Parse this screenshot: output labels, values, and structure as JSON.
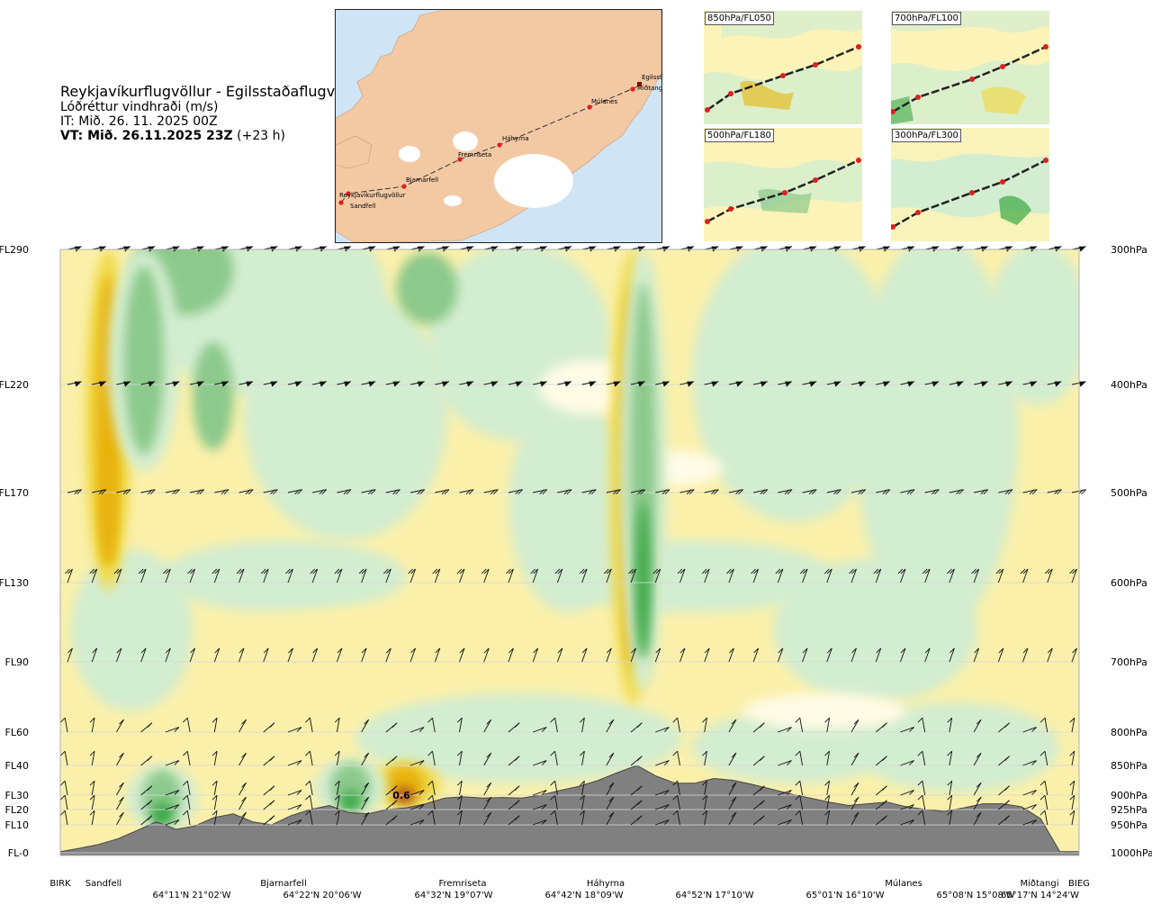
{
  "header": {
    "route": "Reykjavíkurflugvöllur - Egilsstaðaflugvöllur",
    "quantity": "Lóðréttur vindhraði (m/s)",
    "init_time": "IT: Mið. 26. 11. 2025 00Z",
    "valid_time_bold": "VT: Mið. 26.11.2025 23Z",
    "valid_time_offset": "(+23 h)"
  },
  "map": {
    "places": [
      "Reykjavíkurflugvöllur",
      "Sandfell",
      "Bjarnarfell",
      "Fremriseta",
      "Háhyrna",
      "Múlanes",
      "Miðtangi",
      "Egilsstaðir"
    ],
    "colors": {
      "sea": "#cfe4f4",
      "land": "#f3c9a4",
      "ice": "#ffffff",
      "route_point": "#e02020"
    }
  },
  "insets": [
    {
      "label": "850hPa/FL050"
    },
    {
      "label": "700hPa/FL100"
    },
    {
      "label": "500hPa/FL180"
    },
    {
      "label": "300hPa/FL300"
    }
  ],
  "chart_data": {
    "type": "heatmap",
    "title": "Lóðréttur vindhraði (m/s)",
    "xlabel": "",
    "ylabel": "",
    "left_axis": {
      "labels": [
        "FL290",
        "FL220",
        "FL170",
        "FL130",
        "FL90",
        "FL60",
        "FL40",
        "FL30",
        "FL20",
        "FL10",
        "FL-0"
      ]
    },
    "right_axis": {
      "labels": [
        "300hPa",
        "400hPa",
        "500hPa",
        "600hPa",
        "700hPa",
        "800hPa",
        "850hPa",
        "900hPa",
        "925hPa",
        "950hPa",
        "1000hPa"
      ]
    },
    "levels_hpa": [
      300,
      400,
      500,
      600,
      700,
      800,
      850,
      900,
      925,
      950,
      1000
    ],
    "waypoints": [
      "BIRK",
      "Sandfell",
      "Bjarnarfell",
      "Fremriseta",
      "Háhyrna",
      "Múlanes",
      "Miðtangi",
      "BIEG"
    ],
    "coordinates": [
      "64°11'N 21°02'W",
      "64°22'N 20°06'W",
      "64°32'N 19°07'W",
      "64°42'N 18°09'W",
      "64°52'N 17°10'W",
      "65°01'N 16°10'W",
      "65°08'N 15°08'W",
      "65°17'N 14°24'W"
    ],
    "annotation": "0.6",
    "colors": {
      "strong_down": "#3aa845",
      "moderate_down": "#8cc98c",
      "weak_down": "#d3edd0",
      "near_zero": "#fffbe6",
      "weak_up": "#faf0aa",
      "moderate_up": "#f0dc50",
      "strong_up": "#e8b20a",
      "very_strong_up": "#a8501e",
      "terrain": "#808080"
    },
    "vertical_velocity_features": [
      {
        "kind": "up",
        "x_frac": 0.047,
        "p_top": 300,
        "p_bottom": 610,
        "max_ms": 0.3
      },
      {
        "kind": "up",
        "x_frac": 0.562,
        "p_top": 300,
        "p_bottom": 760,
        "max_ms": 0.4
      },
      {
        "kind": "up",
        "x_frac": 0.338,
        "p_top": 845,
        "p_bottom": 920,
        "max_ms": 0.6
      },
      {
        "kind": "down",
        "x_frac": 0.082,
        "p_top": 300,
        "p_bottom": 480,
        "max_ms": -0.2
      },
      {
        "kind": "down",
        "x_frac": 0.285,
        "p_top": 840,
        "p_bottom": 935,
        "max_ms": -0.3
      },
      {
        "kind": "down",
        "x_frac": 0.572,
        "p_top": 300,
        "p_bottom": 740,
        "max_ms": -0.3
      },
      {
        "kind": "down",
        "x_frac": 0.1,
        "p_top": 850,
        "p_bottom": 960,
        "max_ms": -0.3
      }
    ],
    "terrain_profile_hpa": [
      998,
      992,
      985,
      975,
      960,
      945,
      958,
      952,
      938,
      932,
      945,
      950,
      935,
      925,
      918,
      930,
      932,
      925,
      922,
      915,
      905,
      903,
      905,
      904,
      905,
      900,
      892,
      885,
      875,
      862,
      850,
      868,
      880,
      880,
      872,
      875,
      882,
      890,
      898,
      905,
      912,
      918,
      915,
      912,
      920,
      925,
      928,
      922,
      915,
      915,
      920,
      940,
      998,
      998
    ]
  }
}
